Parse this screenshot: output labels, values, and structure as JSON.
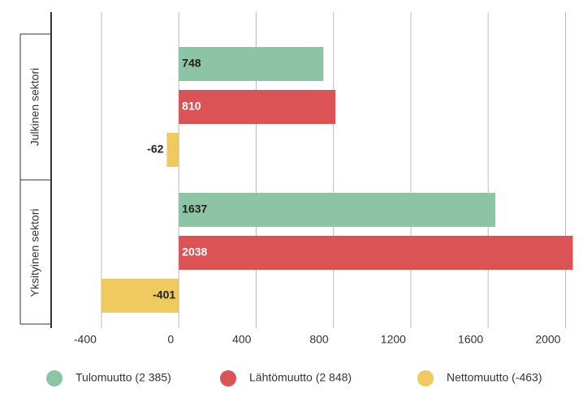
{
  "chart_data": {
    "type": "hbar",
    "categories": [
      "Julkinen sektori",
      "Yksityinen sektori"
    ],
    "series": [
      {
        "name": "Tulomuutto (2 385)",
        "color": "#8dc4a6",
        "values": [
          748,
          1637
        ]
      },
      {
        "name": "Lähtömuutto (2 848)",
        "color": "#dc5355",
        "values": [
          810,
          2038
        ]
      },
      {
        "name": "Nettomuutto (-463)",
        "color": "#f0c95f",
        "values": [
          -62,
          -401
        ]
      }
    ],
    "xlim": [
      -660,
      2040
    ],
    "xticks": [
      -400,
      0,
      400,
      800,
      1200,
      1600,
      2000
    ],
    "grid": true,
    "legend": "bottom"
  }
}
